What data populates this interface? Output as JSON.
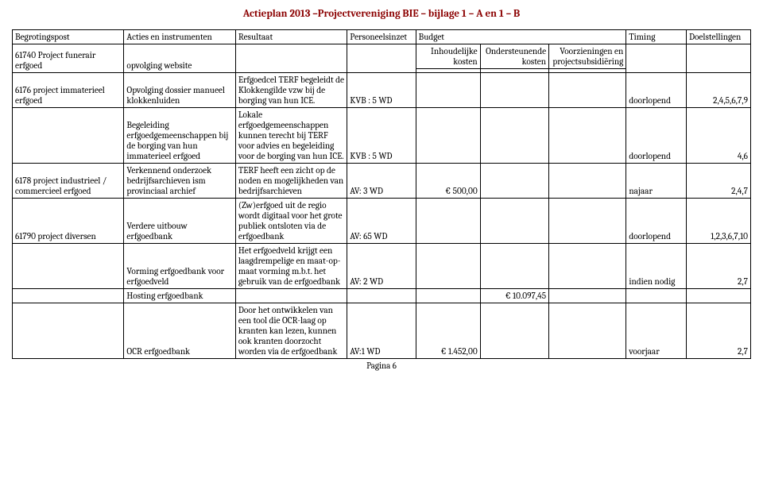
{
  "title": "Actieplan 2013 –Projectvereniging BIE – bijlage 1 – A en 1 – B",
  "headers": {
    "c1": "Begrotingspost",
    "c2": "Acties en instrumenten",
    "c3": "Resultaat",
    "c4": "Personeelsinzet",
    "c5": "Budget",
    "c8": "Timing",
    "c9": "Doelstellingen"
  },
  "subheaders": {
    "inhoud": "Inhoudelijke kosten",
    "onderst": "Ondersteunende kosten",
    "voorz": "Voorzieningen en projectsubsidiëring"
  },
  "rows": [
    {
      "post": "61740 Project funerair erfgoed",
      "acties": "opvolging website",
      "res": "",
      "pers": "",
      "b1": "",
      "b2": "",
      "b3": "",
      "tim": "",
      "doel": ""
    },
    {
      "post": "6176 project immaterieel erfgoed",
      "acties": "Opvolging dossier manueel klokkenluiden",
      "res": "Erfgoedcel TERF begeleidt de Klokkengilde vzw bij de borging van hun ICE.",
      "pers": "KVB : 5 WD",
      "b1": "",
      "b2": "",
      "b3": "",
      "tim": "doorlopend",
      "doel": "2,4,5,6,7,9"
    },
    {
      "post": "",
      "acties": "Begeleiding erfgoedgemeenschappen bij de borging van hun immaterieel erfgoed",
      "res": "Lokale erfgoedgemeenschappen kunnen terecht bij TERF voor advies en begeleiding voor de borging van hun ICE.",
      "pers": "KVB : 5 WD",
      "b1": "",
      "b2": "",
      "b3": "",
      "tim": "doorlopend",
      "doel": "4,6"
    },
    {
      "post": "6178 project industrieel / commercieel erfgoed",
      "acties": "Verkennend onderzoek bedrijfsarchieven ism provinciaal archief",
      "res": "TERF heeft een zicht op de noden en mogelijkheden van bedrijfsarchieven",
      "pers": "AV: 3 WD",
      "b1": "€ 500,00",
      "b2": "",
      "b3": "",
      "tim": "najaar",
      "doel": "2,4,7"
    },
    {
      "post": "61790 project diversen",
      "acties": "Verdere uitbouw erfgoedbank",
      "res": "(Zw)erfgoed uit de regio wordt digitaal voor het grote publiek ontsloten via de erfgoedbank",
      "pers": "AV: 65 WD",
      "b1": "",
      "b2": "",
      "b3": "",
      "tim": "doorlopend",
      "doel": "1,2,3,6,7,10"
    },
    {
      "post": "",
      "acties": "Vorming erfgoedbank voor erfgoedveld",
      "res": "Het erfgoedveld krijgt een laagdrempelige en maat-op-maat vorming m.b.t. het gebruik van de erfgoedbank",
      "pers": "AV: 2 WD",
      "b1": "",
      "b2": "",
      "b3": "",
      "tim": "indien nodig",
      "doel": "2,7"
    },
    {
      "post": "",
      "acties": "Hosting erfgoedbank",
      "res": "",
      "pers": "",
      "b1": "",
      "b2": "€ 10.097,45",
      "b3": "",
      "tim": "",
      "doel": ""
    },
    {
      "post": "",
      "acties": "OCR erfgoedbank",
      "res": "Door het ontwikkelen van een tool die OCR-laag op kranten kan lezen, kunnen ook kranten doorzocht worden via de erfgoedbank",
      "pers": "AV:1 WD",
      "b1": "€ 1.452,00",
      "b2": "",
      "b3": "",
      "tim": "voorjaar",
      "doel": "2,7"
    }
  ],
  "footer": "Pagina 6"
}
